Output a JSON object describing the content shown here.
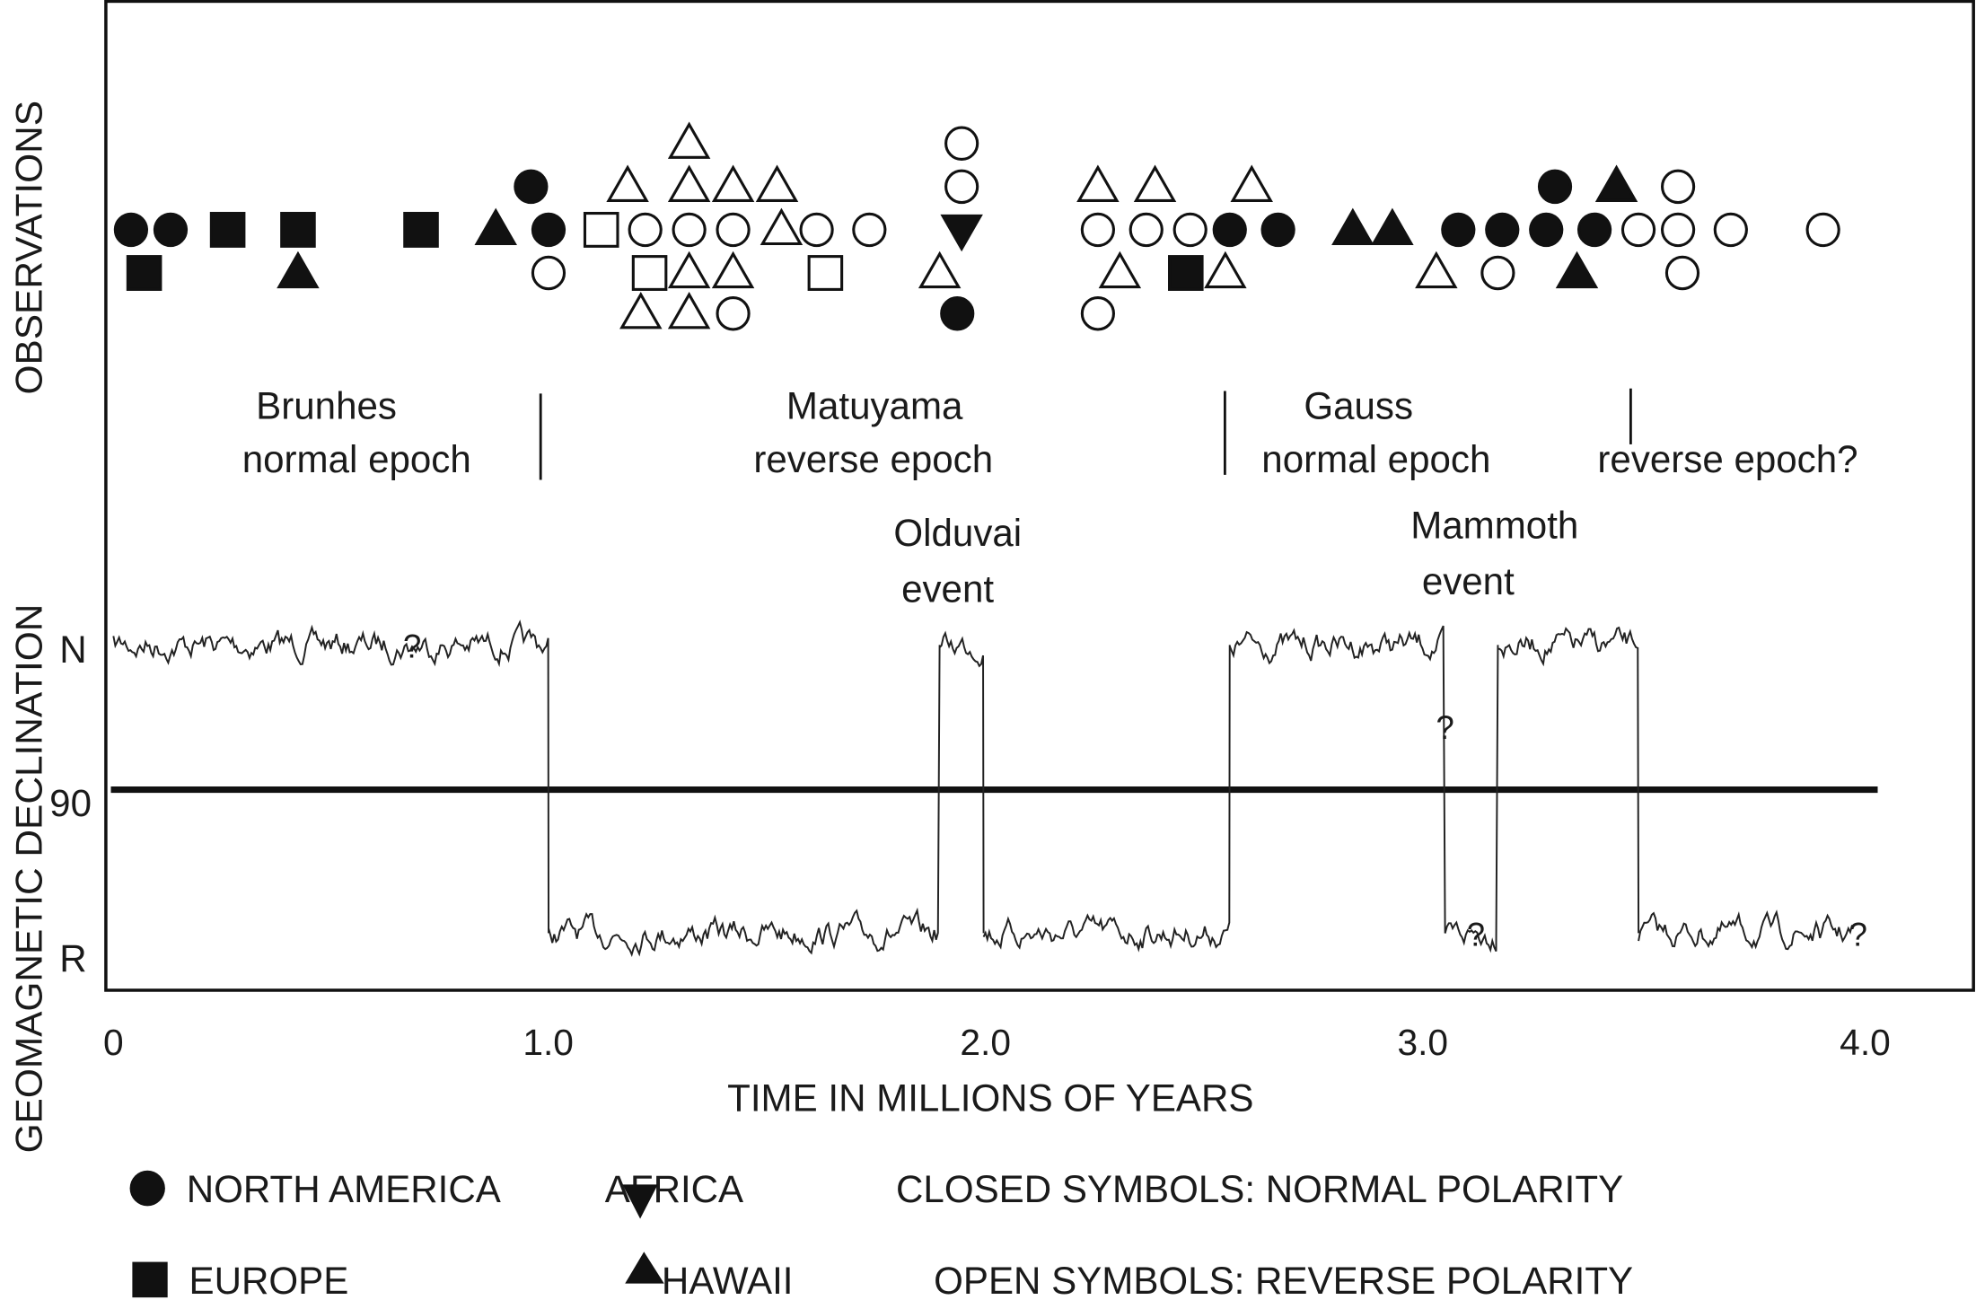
{
  "chart_data": [
    {
      "type": "scatter",
      "ylabel": "OBSERVATIONS",
      "xlabel": "TIME IN MILLIONS OF YEARS",
      "xlim": [
        0,
        4.0
      ],
      "xticks": [
        "0",
        "1.0",
        "2.0",
        "3.0",
        "4.0"
      ],
      "xtick_values": [
        0,
        1.0,
        2.0,
        3.0,
        4.0
      ],
      "rows_note_levels": 5,
      "observations": [
        {
          "t": 0.04,
          "region": "north_america",
          "polarity": "normal",
          "row": 2
        },
        {
          "t": 0.13,
          "region": "north_america",
          "polarity": "normal",
          "row": 2
        },
        {
          "t": 0.07,
          "region": "europe",
          "polarity": "normal",
          "row": 3
        },
        {
          "t": 0.26,
          "region": "europe",
          "polarity": "normal",
          "row": 2
        },
        {
          "t": 0.42,
          "region": "europe",
          "polarity": "normal",
          "row": 2
        },
        {
          "t": 0.42,
          "region": "hawaii",
          "polarity": "normal",
          "row": 3
        },
        {
          "t": 0.7,
          "region": "europe",
          "polarity": "normal",
          "row": 2
        },
        {
          "t": 0.87,
          "region": "hawaii",
          "polarity": "normal",
          "row": 2
        },
        {
          "t": 0.95,
          "region": "north_america",
          "polarity": "normal",
          "row": 1
        },
        {
          "t": 0.99,
          "region": "north_america",
          "polarity": "normal",
          "row": 2
        },
        {
          "t": 0.99,
          "region": "north_america",
          "polarity": "reverse",
          "row": 3
        },
        {
          "t": 1.11,
          "region": "europe",
          "polarity": "reverse",
          "row": 2
        },
        {
          "t": 1.21,
          "region": "north_america",
          "polarity": "reverse",
          "row": 2
        },
        {
          "t": 1.22,
          "region": "europe",
          "polarity": "reverse",
          "row": 3
        },
        {
          "t": 1.17,
          "region": "hawaii",
          "polarity": "reverse",
          "row": 1
        },
        {
          "t": 1.2,
          "region": "hawaii",
          "polarity": "reverse",
          "row": 4
        },
        {
          "t": 1.31,
          "region": "hawaii",
          "polarity": "reverse",
          "row": 0
        },
        {
          "t": 1.31,
          "region": "hawaii",
          "polarity": "reverse",
          "row": 1
        },
        {
          "t": 1.31,
          "region": "north_america",
          "polarity": "reverse",
          "row": 2
        },
        {
          "t": 1.31,
          "region": "hawaii",
          "polarity": "reverse",
          "row": 3
        },
        {
          "t": 1.31,
          "region": "hawaii",
          "polarity": "reverse",
          "row": 4
        },
        {
          "t": 1.41,
          "region": "hawaii",
          "polarity": "reverse",
          "row": 1
        },
        {
          "t": 1.41,
          "region": "north_america",
          "polarity": "reverse",
          "row": 2
        },
        {
          "t": 1.41,
          "region": "hawaii",
          "polarity": "reverse",
          "row": 3
        },
        {
          "t": 1.41,
          "region": "north_america",
          "polarity": "reverse",
          "row": 4
        },
        {
          "t": 1.51,
          "region": "hawaii",
          "polarity": "reverse",
          "row": 1
        },
        {
          "t": 1.52,
          "region": "hawaii",
          "polarity": "reverse",
          "row": 2
        },
        {
          "t": 1.6,
          "region": "north_america",
          "polarity": "reverse",
          "row": 2
        },
        {
          "t": 1.62,
          "region": "europe",
          "polarity": "reverse",
          "row": 3
        },
        {
          "t": 1.72,
          "region": "north_america",
          "polarity": "reverse",
          "row": 2
        },
        {
          "t": 1.93,
          "region": "north_america",
          "polarity": "reverse",
          "row": 0
        },
        {
          "t": 1.93,
          "region": "north_america",
          "polarity": "reverse",
          "row": 1
        },
        {
          "t": 1.93,
          "region": "africa",
          "polarity": "normal",
          "row": 2
        },
        {
          "t": 1.88,
          "region": "hawaii",
          "polarity": "reverse",
          "row": 3
        },
        {
          "t": 1.92,
          "region": "north_america",
          "polarity": "normal",
          "row": 4
        },
        {
          "t": 2.24,
          "region": "hawaii",
          "polarity": "reverse",
          "row": 1
        },
        {
          "t": 2.37,
          "region": "hawaii",
          "polarity": "reverse",
          "row": 1
        },
        {
          "t": 2.59,
          "region": "hawaii",
          "polarity": "reverse",
          "row": 1
        },
        {
          "t": 2.24,
          "region": "north_america",
          "polarity": "reverse",
          "row": 2
        },
        {
          "t": 2.35,
          "region": "north_america",
          "polarity": "reverse",
          "row": 2
        },
        {
          "t": 2.45,
          "region": "north_america",
          "polarity": "reverse",
          "row": 2
        },
        {
          "t": 2.54,
          "region": "north_america",
          "polarity": "normal",
          "row": 2
        },
        {
          "t": 2.65,
          "region": "north_america",
          "polarity": "normal",
          "row": 2
        },
        {
          "t": 2.29,
          "region": "hawaii",
          "polarity": "reverse",
          "row": 3
        },
        {
          "t": 2.44,
          "region": "europe",
          "polarity": "normal",
          "row": 3
        },
        {
          "t": 2.53,
          "region": "hawaii",
          "polarity": "reverse",
          "row": 3
        },
        {
          "t": 2.24,
          "region": "north_america",
          "polarity": "reverse",
          "row": 4
        },
        {
          "t": 2.82,
          "region": "hawaii",
          "polarity": "normal",
          "row": 2
        },
        {
          "t": 2.91,
          "region": "hawaii",
          "polarity": "normal",
          "row": 2
        },
        {
          "t": 3.01,
          "region": "hawaii",
          "polarity": "reverse",
          "row": 3
        },
        {
          "t": 3.15,
          "region": "north_america",
          "polarity": "reverse",
          "row": 3
        },
        {
          "t": 3.06,
          "region": "north_america",
          "polarity": "normal",
          "row": 2
        },
        {
          "t": 3.16,
          "region": "north_america",
          "polarity": "normal",
          "row": 2
        },
        {
          "t": 3.26,
          "region": "north_america",
          "polarity": "normal",
          "row": 2
        },
        {
          "t": 3.37,
          "region": "north_america",
          "polarity": "normal",
          "row": 2
        },
        {
          "t": 3.28,
          "region": "north_america",
          "polarity": "normal",
          "row": 1
        },
        {
          "t": 3.42,
          "region": "hawaii",
          "polarity": "normal",
          "row": 1
        },
        {
          "t": 3.33,
          "region": "hawaii",
          "polarity": "normal",
          "row": 3
        },
        {
          "t": 3.47,
          "region": "north_america",
          "polarity": "reverse",
          "row": 2
        },
        {
          "t": 3.56,
          "region": "north_america",
          "polarity": "reverse",
          "row": 1
        },
        {
          "t": 3.56,
          "region": "north_america",
          "polarity": "reverse",
          "row": 2
        },
        {
          "t": 3.57,
          "region": "north_america",
          "polarity": "reverse",
          "row": 3
        },
        {
          "t": 3.68,
          "region": "north_america",
          "polarity": "reverse",
          "row": 2
        },
        {
          "t": 3.89,
          "region": "north_america",
          "polarity": "reverse",
          "row": 2
        }
      ],
      "epochs": [
        {
          "lines": [
            "Brunhes",
            "normal epoch"
          ],
          "boundary_end": 0.98
        },
        {
          "lines": [
            "Matuyama",
            "reverse epoch"
          ],
          "boundary_end": 2.54
        },
        {
          "lines": [
            "Gauss",
            "normal epoch"
          ],
          "boundary_end": 3.47
        },
        {
          "lines": [
            "",
            "reverse epoch?"
          ]
        }
      ],
      "legend": {
        "regions": [
          {
            "key": "north_america",
            "label": "NORTH AMERICA",
            "symbol": "circle"
          },
          {
            "key": "africa",
            "label": "AFRICA",
            "symbol": "triangle-down"
          },
          {
            "key": "europe",
            "label": "EUROPE",
            "symbol": "square"
          },
          {
            "key": "hawaii",
            "label": "HAWAII",
            "symbol": "triangle-up"
          }
        ],
        "closed_note": "CLOSED SYMBOLS: NORMAL POLARITY",
        "open_note": "OPEN SYMBOLS: REVERSE POLARITY"
      }
    },
    {
      "type": "line",
      "ylabel": "GEOMAGNETIC DECLINATION",
      "yticks": [
        "N",
        "90",
        "R"
      ],
      "xlabel": "TIME IN MILLIONS OF YEARS",
      "xlim": [
        0,
        4.0
      ],
      "polarity_intervals": [
        {
          "start": 0.0,
          "end": 0.99,
          "polarity": "N"
        },
        {
          "start": 0.99,
          "end": 1.88,
          "polarity": "R"
        },
        {
          "start": 1.88,
          "end": 1.98,
          "polarity": "N"
        },
        {
          "start": 1.98,
          "end": 2.54,
          "polarity": "R"
        },
        {
          "start": 2.54,
          "end": 3.03,
          "polarity": "N"
        },
        {
          "start": 3.03,
          "end": 3.15,
          "polarity": "R"
        },
        {
          "start": 3.15,
          "end": 3.47,
          "polarity": "N"
        },
        {
          "start": 3.47,
          "end": 3.96,
          "polarity": "R"
        }
      ],
      "events": [
        {
          "lines": [
            "Olduvai",
            "event"
          ],
          "t": 1.93
        },
        {
          "lines": [
            "Mammoth",
            "event"
          ],
          "t": 3.09
        }
      ],
      "uncertain_marks": [
        {
          "t": 0.68,
          "level": "N",
          "text": "?"
        },
        {
          "t": 3.03,
          "level": "mid",
          "text": "?"
        },
        {
          "t": 3.1,
          "level": "R",
          "text": "?"
        },
        {
          "t": 3.97,
          "level": "R",
          "text": "?"
        }
      ]
    }
  ]
}
